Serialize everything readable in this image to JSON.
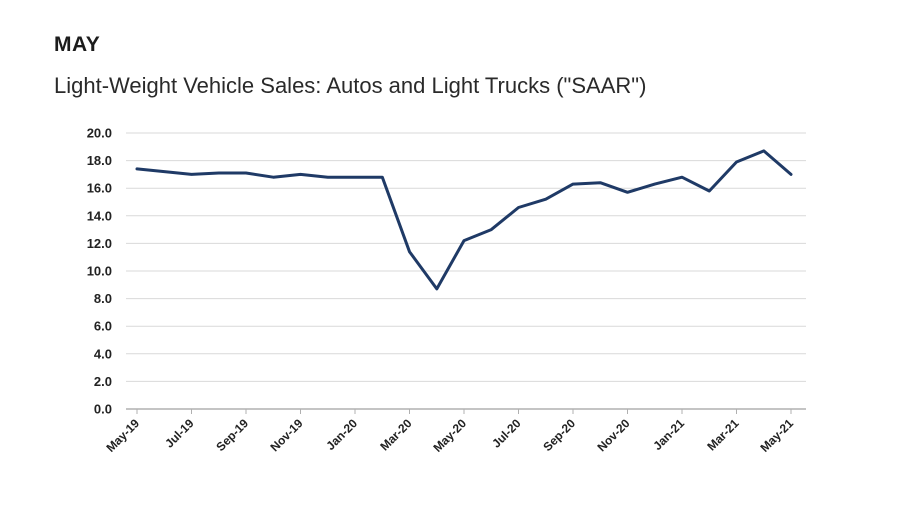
{
  "header": {
    "kicker": "MAY",
    "title": "Light-Weight Vehicle Sales: Autos and Light Trucks (\"SAAR\")"
  },
  "colors": {
    "line": "#1f3a66",
    "grid": "#d9d9d9",
    "axis": "#b0b0b0"
  },
  "chart_data": {
    "type": "line",
    "title": "Light-Weight Vehicle Sales: Autos and Light Trucks (\"SAAR\")",
    "xlabel": "",
    "ylabel": "",
    "ylim": [
      0,
      20
    ],
    "yticks": [
      "0.0",
      "2.0",
      "4.0",
      "6.0",
      "8.0",
      "10.0",
      "12.0",
      "14.0",
      "16.0",
      "18.0",
      "20.0"
    ],
    "grid": true,
    "x": [
      "May-19",
      "Jun-19",
      "Jul-19",
      "Aug-19",
      "Sep-19",
      "Oct-19",
      "Nov-19",
      "Dec-19",
      "Jan-20",
      "Feb-20",
      "Mar-20",
      "Apr-20",
      "May-20",
      "Jun-20",
      "Jul-20",
      "Aug-20",
      "Sep-20",
      "Oct-20",
      "Nov-20",
      "Dec-20",
      "Jan-21",
      "Feb-21",
      "Mar-21",
      "Apr-21",
      "May-21"
    ],
    "xtick_labels": [
      "May-19",
      "Jul-19",
      "Sep-19",
      "Nov-19",
      "Jan-20",
      "Mar-20",
      "May-20",
      "Jul-20",
      "Sep-20",
      "Nov-20",
      "Jan-21",
      "Mar-21",
      "May-21"
    ],
    "series": [
      {
        "values": [
          17.4,
          17.2,
          17.0,
          17.1,
          17.1,
          16.8,
          17.0,
          16.8,
          16.8,
          16.8,
          11.4,
          8.7,
          12.2,
          13.0,
          14.6,
          15.2,
          16.3,
          16.4,
          15.7,
          16.3,
          16.8,
          15.8,
          17.9,
          18.7,
          17.0
        ]
      }
    ]
  }
}
